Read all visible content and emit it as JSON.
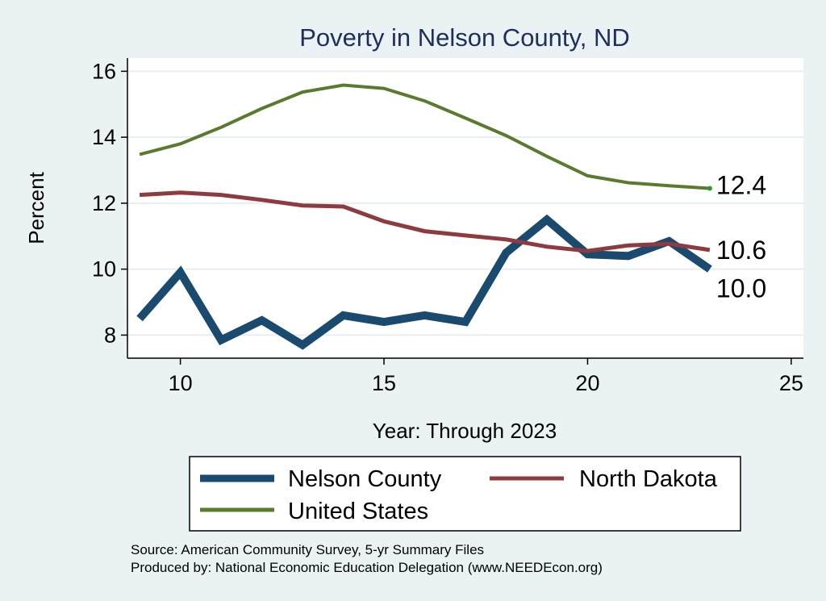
{
  "chart_data": {
    "type": "line",
    "title": "Poverty in Nelson County, ND",
    "xlabel": "Year: Through 2023",
    "ylabel": "Percent",
    "xlim": [
      8.7,
      25.3
    ],
    "ylim": [
      7.3,
      16.4
    ],
    "xticks": [
      10,
      15,
      20,
      25
    ],
    "yticks": [
      8,
      10,
      12,
      14,
      16
    ],
    "grid": true,
    "series": [
      {
        "name": "Nelson County",
        "color": "#1b4a6f",
        "x": [
          9,
          10,
          11,
          12,
          13,
          14,
          15,
          16,
          17,
          18,
          19,
          20,
          21,
          22,
          23
        ],
        "values": [
          8.5,
          9.9,
          7.85,
          8.45,
          7.7,
          8.6,
          8.4,
          8.6,
          8.4,
          10.5,
          11.5,
          10.45,
          10.4,
          10.85,
          10.0
        ],
        "end_label": "10.0"
      },
      {
        "name": "North Dakota",
        "color": "#8e3a3f",
        "x": [
          9,
          10,
          11,
          12,
          13,
          14,
          15,
          16,
          17,
          18,
          19,
          20,
          21,
          22,
          23
        ],
        "values": [
          12.25,
          12.32,
          12.25,
          12.1,
          11.93,
          11.9,
          11.45,
          11.15,
          11.02,
          10.9,
          10.68,
          10.55,
          10.72,
          10.77,
          10.58
        ],
        "end_label": "10.6"
      },
      {
        "name": "United States",
        "color": "#5a7a2e",
        "x": [
          9,
          10,
          11,
          12,
          13,
          14,
          15,
          16,
          17,
          18,
          19,
          20,
          21,
          22,
          23
        ],
        "values": [
          13.48,
          13.8,
          14.3,
          14.87,
          15.37,
          15.58,
          15.48,
          15.1,
          14.58,
          14.05,
          13.42,
          12.83,
          12.62,
          12.53,
          12.45
        ],
        "end_label": "12.4"
      }
    ],
    "legend": {
      "position": "bottom",
      "items": [
        "Nelson County",
        "North Dakota",
        "United States"
      ]
    },
    "notes": [
      "Source: American Community Survey, 5-yr Summary Files",
      "Produced by: National Economic Education Delegation (www.NEEDEcon.org)"
    ]
  },
  "colors": {
    "background": "#eaf2f3",
    "plot_background": "#ffffff",
    "gridline": "#e6eef0",
    "title": "#1e2f5c"
  }
}
